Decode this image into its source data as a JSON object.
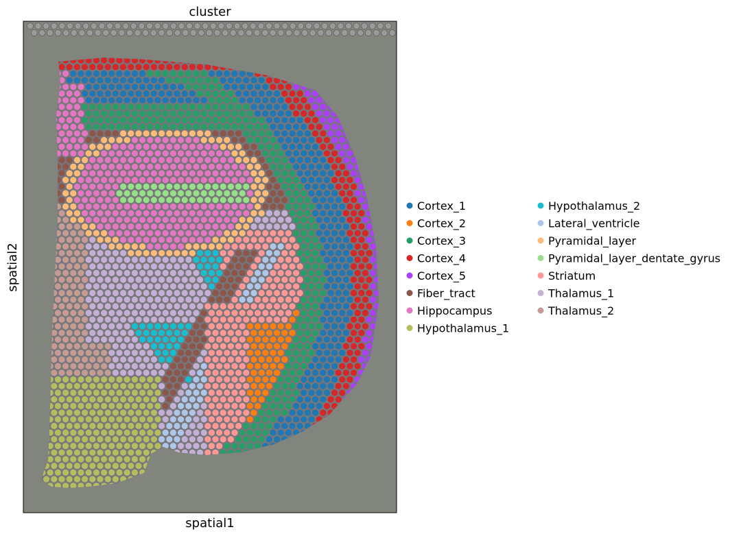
{
  "chart_data": {
    "type": "scatter",
    "title": "cluster",
    "xlabel": "spatial1",
    "ylabel": "spatial2",
    "grid": false,
    "legend_placement": "right",
    "background": "tissue image (gray)",
    "categories": [
      {
        "name": "Cortex_1",
        "color": "#1f77b4"
      },
      {
        "name": "Cortex_2",
        "color": "#ff7f0e"
      },
      {
        "name": "Cortex_3",
        "color": "#279e68"
      },
      {
        "name": "Cortex_4",
        "color": "#d62728"
      },
      {
        "name": "Cortex_5",
        "color": "#aa40fc"
      },
      {
        "name": "Fiber_tract",
        "color": "#8c564b"
      },
      {
        "name": "Hippocampus",
        "color": "#e377c2"
      },
      {
        "name": "Hypothalamus_1",
        "color": "#b5bd61"
      },
      {
        "name": "Hypothalamus_2",
        "color": "#17becf"
      },
      {
        "name": "Lateral_ventricle",
        "color": "#aec7e8"
      },
      {
        "name": "Pyramidal_layer",
        "color": "#ffbb78"
      },
      {
        "name": "Pyramidal_layer_dentate_gyrus",
        "color": "#98df8a"
      },
      {
        "name": "Striatum",
        "color": "#ff9896"
      },
      {
        "name": "Thalamus_1",
        "color": "#c5b0d5"
      },
      {
        "name": "Thalamus_2",
        "color": "#c49c94"
      }
    ]
  }
}
